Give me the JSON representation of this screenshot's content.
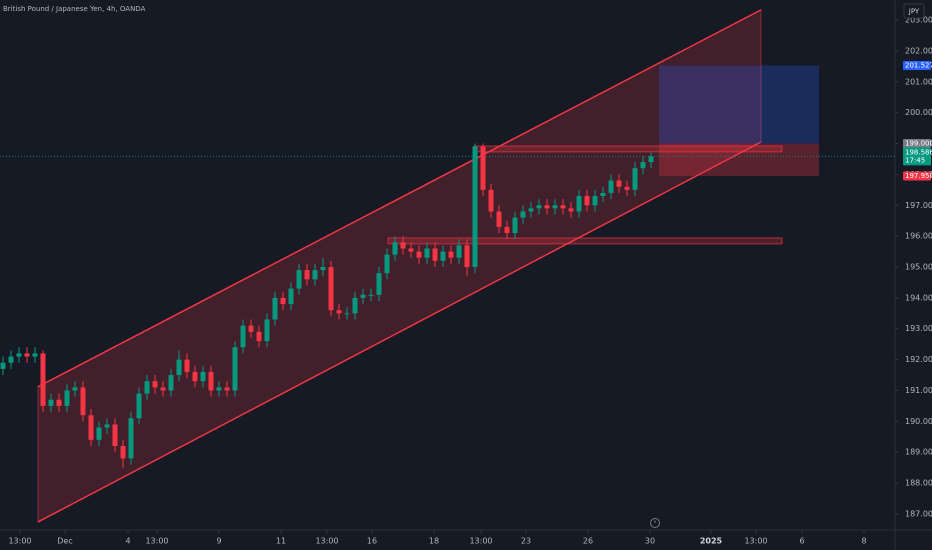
{
  "chart_data": {
    "type": "candlestick",
    "title": "British Pound / Japanese Yen, 4h, OANDA",
    "currency": "JPY",
    "colors": {
      "up": "#089981",
      "down": "#f23645",
      "channel": "#f23645",
      "target": "#2962ff"
    },
    "open": [
      191.7,
      191.9,
      192.1,
      192.2,
      192.1,
      192.2,
      190.5,
      190.7,
      190.5,
      191.0,
      191.1,
      190.2,
      189.4,
      189.8,
      189.9,
      189.2,
      188.8,
      190.1,
      190.9,
      191.3,
      191.1,
      191.0,
      191.5,
      192.0,
      191.6,
      191.3,
      191.6,
      191.0,
      191.1,
      191.0,
      192.4,
      193.1,
      192.9,
      192.6,
      193.3,
      194.0,
      193.8,
      194.3,
      194.9,
      194.6,
      194.9,
      195.0,
      193.6,
      193.5,
      193.5,
      194.0,
      194.1,
      194.1,
      194.8,
      195.4,
      195.8,
      195.6,
      195.5,
      195.3,
      195.6,
      195.2,
      195.5,
      195.3,
      195.7,
      195.0,
      198.9,
      197.5,
      196.8,
      196.3,
      196.1,
      196.6,
      196.8,
      196.9,
      197.0,
      196.9,
      197.0,
      196.9,
      196.8,
      197.3,
      197.0,
      197.3,
      197.4,
      197.8,
      197.6,
      197.5,
      198.2,
      198.4
    ],
    "high": [
      192.1,
      192.3,
      192.4,
      192.4,
      192.4,
      192.3,
      190.9,
      190.9,
      191.2,
      191.3,
      191.3,
      190.4,
      190.0,
      190.1,
      190.1,
      189.4,
      190.3,
      191.1,
      191.5,
      191.5,
      191.3,
      191.7,
      192.3,
      192.2,
      191.8,
      191.8,
      191.8,
      191.3,
      191.3,
      192.6,
      193.3,
      193.3,
      193.1,
      193.5,
      194.2,
      194.2,
      194.5,
      195.1,
      195.1,
      195.1,
      195.3,
      195.2,
      193.8,
      193.7,
      194.2,
      194.3,
      194.3,
      195.0,
      195.6,
      196.0,
      196.0,
      195.8,
      195.7,
      195.8,
      195.8,
      195.7,
      195.7,
      195.9,
      195.9,
      199.0,
      199.0,
      197.7,
      197.0,
      196.5,
      196.8,
      197.0,
      197.1,
      197.2,
      197.2,
      197.2,
      197.2,
      197.1,
      197.5,
      197.5,
      197.5,
      197.6,
      198.0,
      198.0,
      197.8,
      198.4,
      198.6,
      198.7
    ],
    "low": [
      191.5,
      191.7,
      191.9,
      191.9,
      191.9,
      190.3,
      190.3,
      190.3,
      190.3,
      190.8,
      190.0,
      189.2,
      189.2,
      189.6,
      189.0,
      188.5,
      188.6,
      189.9,
      190.7,
      190.9,
      190.8,
      190.8,
      191.3,
      191.4,
      191.1,
      191.1,
      190.8,
      190.8,
      190.8,
      190.8,
      192.2,
      192.7,
      192.4,
      192.4,
      193.1,
      193.6,
      193.6,
      194.1,
      194.4,
      194.4,
      194.7,
      193.4,
      193.3,
      193.3,
      193.3,
      193.8,
      193.9,
      193.9,
      194.6,
      195.2,
      195.4,
      195.3,
      195.1,
      195.1,
      195.0,
      195.0,
      195.1,
      195.1,
      194.7,
      194.8,
      197.3,
      196.6,
      196.1,
      195.9,
      195.9,
      196.4,
      196.6,
      196.7,
      196.7,
      196.7,
      196.7,
      196.6,
      196.6,
      196.8,
      196.8,
      197.1,
      197.2,
      197.4,
      197.3,
      197.3,
      198.0,
      198.2
    ],
    "close": [
      191.9,
      192.1,
      192.2,
      192.1,
      192.2,
      190.5,
      190.7,
      190.5,
      191.0,
      191.1,
      190.2,
      189.4,
      189.8,
      189.9,
      189.2,
      188.8,
      190.1,
      190.9,
      191.3,
      191.1,
      191.0,
      191.5,
      192.0,
      191.6,
      191.3,
      191.6,
      191.0,
      191.1,
      191.0,
      192.4,
      193.1,
      192.9,
      192.6,
      193.3,
      194.0,
      193.8,
      194.3,
      194.9,
      194.6,
      194.9,
      195.0,
      193.6,
      193.5,
      193.5,
      194.0,
      194.1,
      194.1,
      194.8,
      195.4,
      195.8,
      195.6,
      195.5,
      195.3,
      195.6,
      195.2,
      195.5,
      195.3,
      195.7,
      195.0,
      198.9,
      197.5,
      196.8,
      196.3,
      196.1,
      196.6,
      196.8,
      196.9,
      197.0,
      196.9,
      197.0,
      196.9,
      196.8,
      197.3,
      197.0,
      197.3,
      197.4,
      197.8,
      197.6,
      197.5,
      198.2,
      198.4,
      198.586
    ],
    "xlim": [
      -0.375,
      111.5
    ],
    "xticks": [
      {
        "value": 2.125,
        "label": "13:00"
      },
      {
        "value": 7.75,
        "label": "Dec"
      },
      {
        "value": 15.625,
        "label": "4"
      },
      {
        "value": 19.25,
        "label": "13:00"
      },
      {
        "value": 27,
        "label": "9"
      },
      {
        "value": 34.75,
        "label": "11"
      },
      {
        "value": 40.5,
        "label": "13:00"
      },
      {
        "value": 46.125,
        "label": "16"
      },
      {
        "value": 53.875,
        "label": "18"
      },
      {
        "value": 59.75,
        "label": "13:00"
      },
      {
        "value": 65.375,
        "label": "23"
      },
      {
        "value": 73.125,
        "label": "26"
      },
      {
        "value": 80.875,
        "label": "30"
      },
      {
        "value": 88.5,
        "label": "2025"
      },
      {
        "value": 94.125,
        "label": "13:00"
      },
      {
        "value": 99.875,
        "label": "6"
      },
      {
        "value": 107.625,
        "label": "8"
      }
    ],
    "ylim": [
      186.48,
      203.65
    ],
    "yticks": [
      {
        "value": 187,
        "label": "187.000"
      },
      {
        "value": 188,
        "label": "188.000"
      },
      {
        "value": 189,
        "label": "189.000"
      },
      {
        "value": 190,
        "label": "190.000"
      },
      {
        "value": 191,
        "label": "191.000"
      },
      {
        "value": 192,
        "label": "192.000"
      },
      {
        "value": 193,
        "label": "193.000"
      },
      {
        "value": 194,
        "label": "194.000"
      },
      {
        "value": 195,
        "label": "195.000"
      },
      {
        "value": 196,
        "label": "196.000"
      },
      {
        "value": 197,
        "label": "197.000"
      },
      {
        "value": 198,
        "label": "198.000"
      },
      {
        "value": 199,
        "label": "199.000"
      },
      {
        "value": 200,
        "label": "200.000"
      },
      {
        "value": 201,
        "label": "201.000"
      },
      {
        "value": 202,
        "label": "202.000"
      },
      {
        "value": 203,
        "label": "203.000"
      }
    ],
    "channel": {
      "x": [
        4.375,
        94.75
      ],
      "upper": [
        191.12,
        203.33
      ],
      "lower": [
        186.74,
        199.05
      ]
    },
    "zones": [
      {
        "x": [
          58.875,
          97.375
        ],
        "y": [
          198.73,
          198.92
        ]
      },
      {
        "x": [
          48.125,
          97.375
        ],
        "y": [
          195.75,
          195.94
        ]
      }
    ],
    "position": {
      "x": [
        82,
        102
      ],
      "target": {
        "value": 201.527,
        "label": "201.527"
      },
      "entry": {
        "value": 199.0,
        "label": "199.000"
      },
      "stop": {
        "value": 197.95,
        "label": "197.950"
      }
    },
    "last_price": {
      "value": 198.586,
      "label": "198.586"
    },
    "countdown": "17:45"
  }
}
